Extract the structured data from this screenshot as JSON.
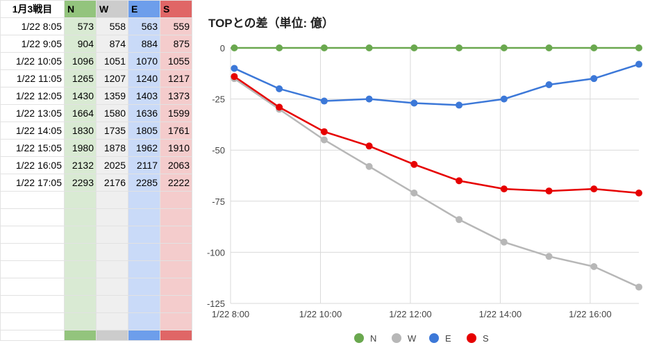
{
  "sheet": {
    "corner_label": "1月3戦目",
    "headers": [
      "N",
      "W",
      "E",
      "S"
    ],
    "rows": [
      {
        "time": "1/22 8:05",
        "n": "573",
        "w": "558",
        "e": "563",
        "s": "559"
      },
      {
        "time": "1/22 9:05",
        "n": "904",
        "w": "874",
        "e": "884",
        "s": "875"
      },
      {
        "time": "1/22 10:05",
        "n": "1096",
        "w": "1051",
        "e": "1070",
        "s": "1055"
      },
      {
        "time": "1/22 11:05",
        "n": "1265",
        "w": "1207",
        "e": "1240",
        "s": "1217"
      },
      {
        "time": "1/22 12:05",
        "n": "1430",
        "w": "1359",
        "e": "1403",
        "s": "1373"
      },
      {
        "time": "1/22 13:05",
        "n": "1664",
        "w": "1580",
        "e": "1636",
        "s": "1599"
      },
      {
        "time": "1/22 14:05",
        "n": "1830",
        "w": "1735",
        "e": "1805",
        "s": "1761"
      },
      {
        "time": "1/22 15:05",
        "n": "1980",
        "w": "1878",
        "e": "1962",
        "s": "1910"
      },
      {
        "time": "1/22 16:05",
        "n": "2132",
        "w": "2025",
        "e": "2117",
        "s": "2063"
      },
      {
        "time": "1/22 17:05",
        "n": "2293",
        "w": "2176",
        "e": "2285",
        "s": "2222"
      }
    ],
    "column_colors": {
      "N": {
        "header": "#93c47d",
        "cell": "#d9ead3"
      },
      "W": {
        "header": "#cccccc",
        "cell": "#efefef"
      },
      "E": {
        "header": "#6d9eeb",
        "cell": "#c9daf8"
      },
      "S": {
        "header": "#e06666",
        "cell": "#f4cccc"
      }
    }
  },
  "chart_data": {
    "type": "line",
    "title": "TOPとの差（単位: 億）",
    "x": [
      "1/22 8:05",
      "1/22 9:05",
      "1/22 10:05",
      "1/22 11:05",
      "1/22 12:05",
      "1/22 13:05",
      "1/22 14:05",
      "1/22 15:05",
      "1/22 16:05",
      "1/22 17:05"
    ],
    "x_range": [
      "1/22 8:00",
      "1/22 17:05"
    ],
    "x_tick_labels": [
      "1/22 8:00",
      "1/22 10:00",
      "1/22 12:00",
      "1/22 14:00",
      "1/22 16:00"
    ],
    "ylim": [
      -125,
      0
    ],
    "y_tick_labels": [
      "0",
      "-25",
      "-50",
      "-75",
      "-100",
      "-125"
    ],
    "grid": true,
    "legend_position": "bottom",
    "series": [
      {
        "name": "N",
        "color": "#6aa84f",
        "values": [
          0,
          0,
          0,
          0,
          0,
          0,
          0,
          0,
          0,
          0
        ]
      },
      {
        "name": "W",
        "color": "#b7b7b7",
        "values": [
          -15,
          -30,
          -45,
          -58,
          -71,
          -84,
          -95,
          -102,
          -107,
          -117
        ]
      },
      {
        "name": "E",
        "color": "#3c78d8",
        "values": [
          -10,
          -20,
          -26,
          -25,
          -27,
          -28,
          -25,
          -18,
          -15,
          -8
        ]
      },
      {
        "name": "S",
        "color": "#e60000",
        "values": [
          -14,
          -29,
          -41,
          -48,
          -57,
          -65,
          -69,
          -70,
          -69,
          -71
        ]
      }
    ]
  }
}
